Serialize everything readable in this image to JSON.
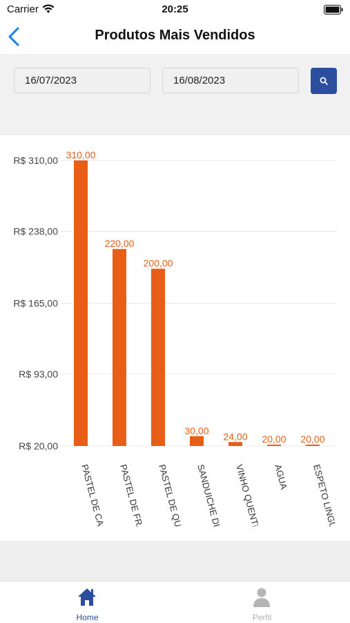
{
  "status_bar": {
    "carrier": "Carrier",
    "time": "20:25"
  },
  "header": {
    "title": "Produtos Mais Vendidos"
  },
  "filter": {
    "start_date": "16/07/2023",
    "end_date": "16/08/2023"
  },
  "tabs": [
    {
      "label": "Home",
      "icon": "home-icon",
      "active": true
    },
    {
      "label": "Perfil",
      "icon": "person-icon",
      "active": false
    }
  ],
  "colors": {
    "bar": "#e85e17",
    "accent": "#2b4f9e",
    "grid": "#e8e8e8"
  },
  "chart_data": {
    "type": "bar",
    "categories": [
      "PASTEL DE CAF",
      "PASTEL DE FRA",
      "PASTEL DE QUE",
      "SANDUICHE DE",
      "VINHO QUENTE",
      "AGUA",
      "ESPETO LINGUI"
    ],
    "values": [
      310.0,
      220.0,
      200.0,
      30.0,
      24.0,
      20.0,
      20.0
    ],
    "value_labels": [
      "310,00",
      "220,00",
      "200,00",
      "30,00",
      "24,00",
      "20,00",
      "20,00"
    ],
    "y_ticks": [
      20,
      93,
      165,
      238,
      310
    ],
    "y_tick_labels": [
      "R$ 20,00",
      "R$ 93,00",
      "R$ 165,00",
      "R$ 238,00",
      "R$ 310,00"
    ],
    "ylim": [
      20,
      310
    ],
    "grid": true,
    "legend": "none"
  }
}
